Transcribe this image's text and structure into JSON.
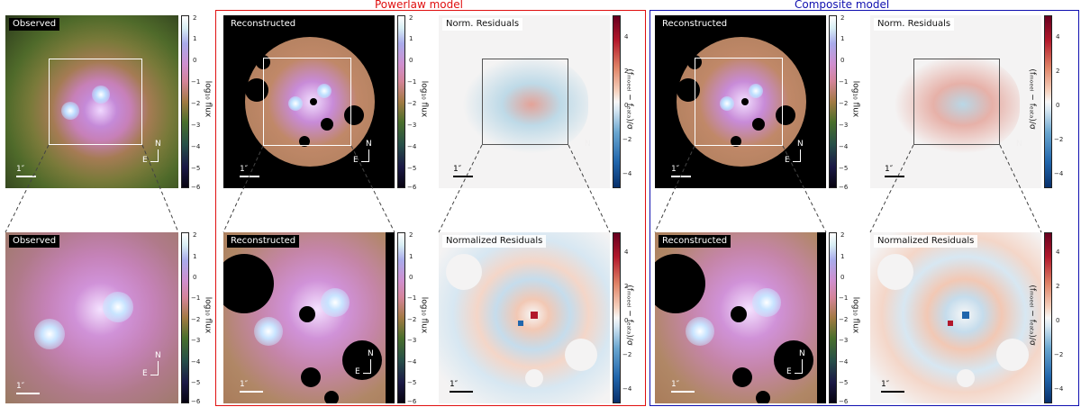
{
  "headers": {
    "powerlaw": "Powerlaw model",
    "composite": "Composite model"
  },
  "colors": {
    "powerlaw": "#e01010",
    "composite": "#1010b0"
  },
  "labels": {
    "observed": "Observed",
    "reconstructed": "Reconstructed",
    "norm_residuals_short": "Norm. Residuals",
    "norm_residuals_long": "Normalized Residuals"
  },
  "colorbars": {
    "flux_label": "log₁₀ flux",
    "flux_ticks": [
      "2",
      "1",
      "0",
      "−1",
      "−2",
      "−3",
      "−4",
      "−5",
      "−6"
    ],
    "resid_label": "(fₘₒₑₑₗ − fₑₐₜₐ)/σ",
    "resid_ticks": [
      "4",
      "2",
      "0",
      "−2",
      "−4"
    ]
  },
  "scale": "1″",
  "compass": {
    "north": "N",
    "east": "E"
  }
}
